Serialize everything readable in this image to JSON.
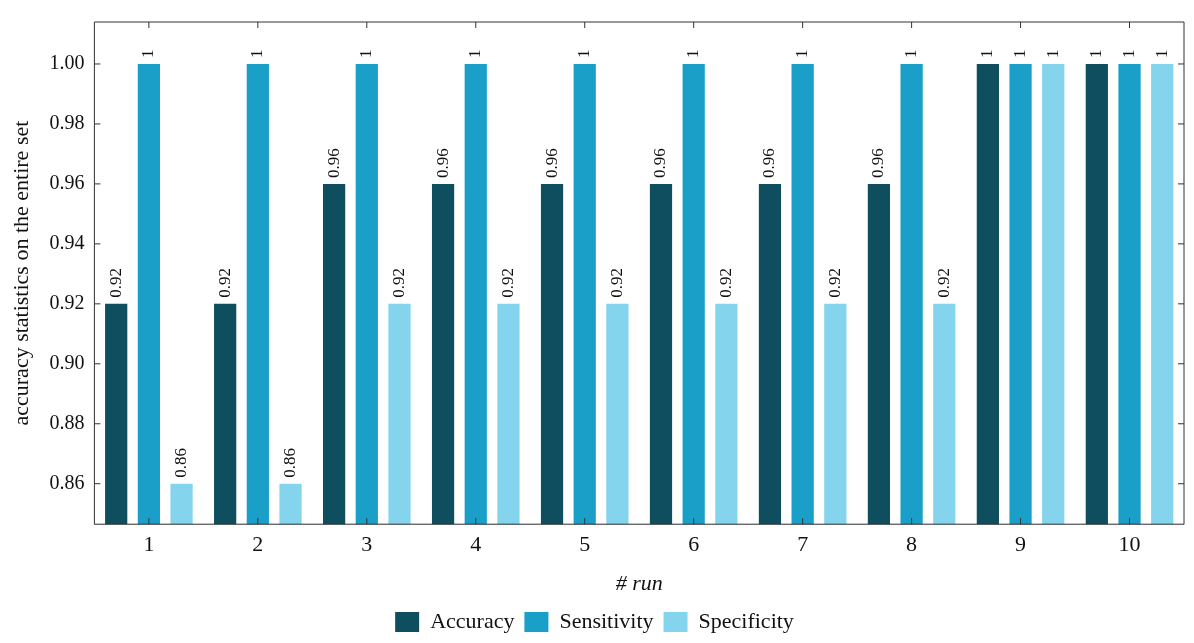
{
  "chart_data": {
    "type": "bar",
    "xlabel": "# run",
    "ylabel": "accuracy statistics on the entire set",
    "categories": [
      "1",
      "2",
      "3",
      "4",
      "5",
      "6",
      "7",
      "8",
      "9",
      "10"
    ],
    "series": [
      {
        "name": "Accuracy",
        "color": "#0f4e5e",
        "values": [
          0.92,
          0.92,
          0.96,
          0.96,
          0.96,
          0.96,
          0.96,
          0.96,
          1,
          1
        ]
      },
      {
        "name": "Sensitivity",
        "color": "#1a9fc9",
        "values": [
          1,
          1,
          1,
          1,
          1,
          1,
          1,
          1,
          1,
          1
        ]
      },
      {
        "name": "Specificity",
        "color": "#84d4ee",
        "values": [
          0.86,
          0.86,
          0.92,
          0.92,
          0.92,
          0.92,
          0.92,
          0.92,
          1,
          1
        ]
      }
    ],
    "ylim": [
      0.8465,
      1.014
    ],
    "yticks": [
      0.86,
      0.88,
      {
        "value": 0.9,
        "label": "0.90"
      },
      0.92,
      0.94,
      0.96,
      0.98,
      {
        "value": 1,
        "label": "1.00"
      }
    ],
    "data_labels": true,
    "grid": false,
    "legend": "bottom"
  }
}
